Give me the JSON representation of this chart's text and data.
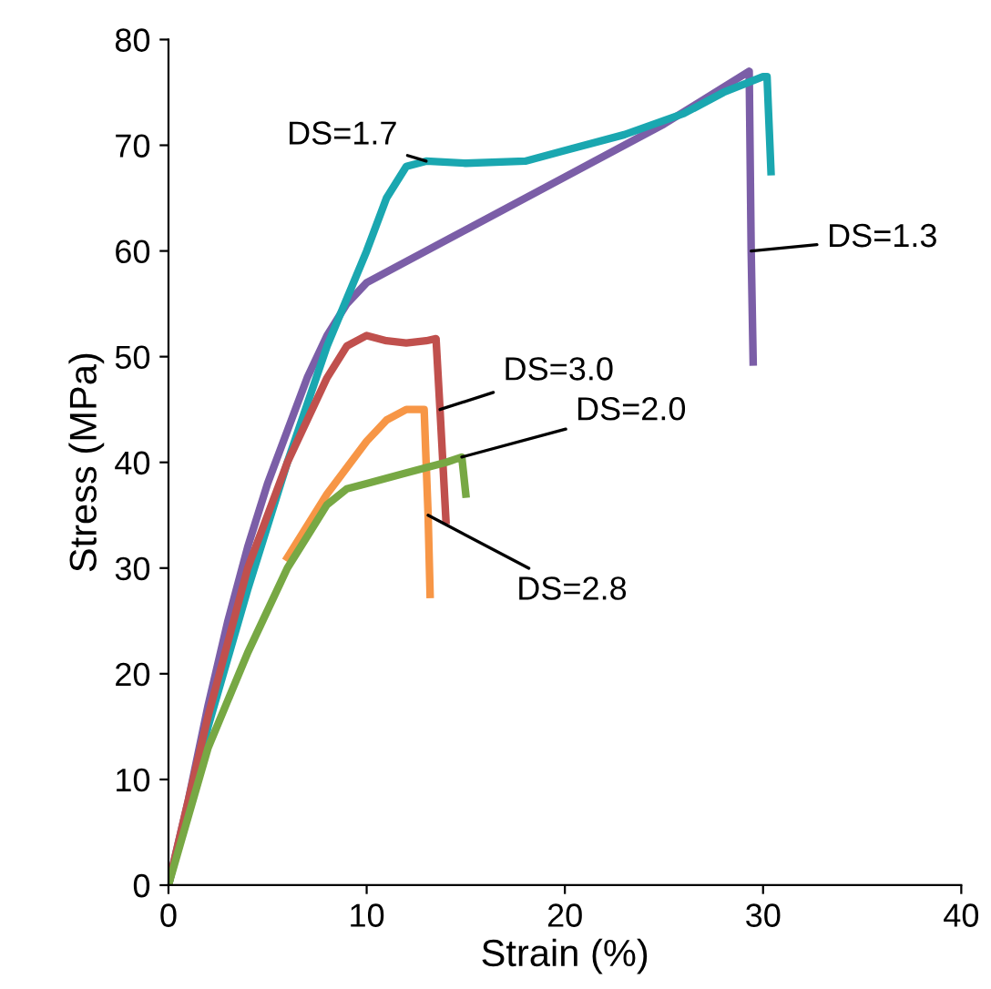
{
  "chart_data": {
    "type": "line",
    "xlabel": "Strain (%)",
    "ylabel": "Stress (MPa)",
    "xlim": [
      0,
      40
    ],
    "ylim": [
      0,
      80
    ],
    "xticks": [
      0,
      10,
      20,
      30,
      40
    ],
    "yticks": [
      0,
      10,
      20,
      30,
      40,
      50,
      60,
      70,
      80
    ],
    "grid": false,
    "legend": false,
    "series": [
      {
        "name": "DS=1.3",
        "color": "#7b5ea7",
        "x": [
          0,
          1,
          2,
          3,
          4,
          5,
          6,
          7,
          8,
          9,
          10,
          12,
          15,
          20,
          25,
          29.3,
          29.4,
          29.5
        ],
        "values": [
          0,
          8,
          17,
          25,
          32,
          38,
          43,
          48,
          52,
          55,
          57,
          59,
          62,
          67,
          72,
          77,
          60,
          49.5
        ]
      },
      {
        "name": "DS=1.7",
        "color": "#1aa7b0",
        "x": [
          0,
          2,
          4,
          6,
          8,
          10,
          11,
          12,
          13,
          15,
          18,
          20,
          23,
          26,
          28,
          30,
          30.2,
          30.4
        ],
        "values": [
          0,
          15,
          28,
          40,
          51,
          60,
          65,
          68,
          68.5,
          68.3,
          68.5,
          69.5,
          71,
          73,
          75,
          76.5,
          76.5,
          67.5
        ]
      },
      {
        "name": "DS=3.0",
        "color": "#c0504d",
        "x": [
          0,
          2,
          4,
          6,
          8,
          9,
          10,
          11,
          12,
          13,
          13.5,
          13.7,
          14
        ],
        "values": [
          0,
          16,
          30,
          40,
          48,
          51,
          52,
          51.5,
          51.3,
          51.5,
          51.7,
          45,
          34.5
        ]
      },
      {
        "name": "DS=2.8",
        "color": "#f79646",
        "x": [
          6,
          8,
          9,
          10,
          11,
          12,
          12.9,
          13.1,
          13.2
        ],
        "values": [
          31,
          37,
          39.5,
          42,
          44,
          45,
          45,
          35,
          27.5
        ]
      },
      {
        "name": "DS=2.0",
        "color": "#77a844",
        "x": [
          0,
          2,
          4,
          6,
          7,
          8,
          9,
          10,
          12,
          14,
          14.8,
          15
        ],
        "values": [
          0,
          13,
          22,
          30,
          33,
          36,
          37.5,
          38,
          39,
          40,
          40.5,
          37
        ]
      }
    ]
  }
}
